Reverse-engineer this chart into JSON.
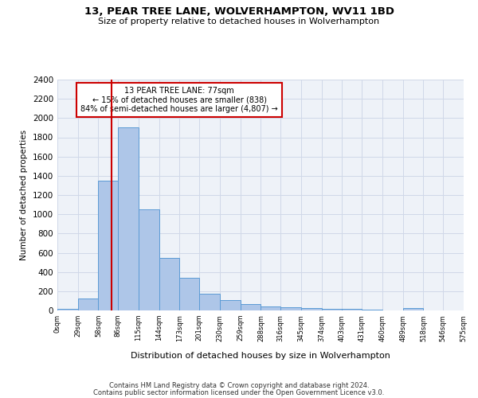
{
  "title": "13, PEAR TREE LANE, WOLVERHAMPTON, WV11 1BD",
  "subtitle": "Size of property relative to detached houses in Wolverhampton",
  "xlabel": "Distribution of detached houses by size in Wolverhampton",
  "ylabel": "Number of detached properties",
  "footer_line1": "Contains HM Land Registry data © Crown copyright and database right 2024.",
  "footer_line2": "Contains public sector information licensed under the Open Government Licence v3.0.",
  "bin_edges": [
    0,
    29,
    58,
    86,
    115,
    144,
    173,
    201,
    230,
    259,
    288,
    316,
    345,
    374,
    403,
    431,
    460,
    489,
    518,
    546,
    575
  ],
  "bar_heights": [
    15,
    125,
    1350,
    1900,
    1050,
    550,
    340,
    170,
    110,
    65,
    40,
    30,
    25,
    20,
    15,
    5,
    0,
    25,
    0,
    0
  ],
  "bar_color": "#aec6e8",
  "bar_edge_color": "#5b9bd5",
  "grid_color": "#d0d8e8",
  "background_color": "#eef2f8",
  "red_line_x": 77,
  "annotation_line1": "13 PEAR TREE LANE: 77sqm",
  "annotation_line2": "← 15% of detached houses are smaller (838)",
  "annotation_line3": "84% of semi-detached houses are larger (4,807) →",
  "annotation_box_color": "#cc0000",
  "ylim": [
    0,
    2400
  ],
  "yticks": [
    0,
    200,
    400,
    600,
    800,
    1000,
    1200,
    1400,
    1600,
    1800,
    2000,
    2200,
    2400
  ],
  "xtick_labels": [
    "0sqm",
    "29sqm",
    "58sqm",
    "86sqm",
    "115sqm",
    "144sqm",
    "173sqm",
    "201sqm",
    "230sqm",
    "259sqm",
    "288sqm",
    "316sqm",
    "345sqm",
    "374sqm",
    "403sqm",
    "431sqm",
    "460sqm",
    "489sqm",
    "518sqm",
    "546sqm",
    "575sqm"
  ]
}
